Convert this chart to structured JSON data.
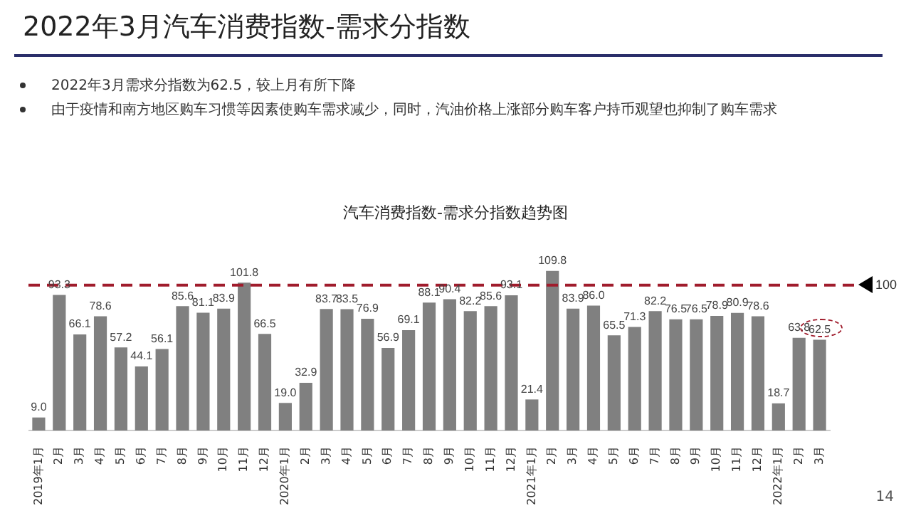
{
  "chart_data": {
    "type": "bar",
    "title": "2022年3月汽车消费指数-需求分指数",
    "subtitle": "汽车消费指数-需求分指数趋势图",
    "annotations": [
      "2022年3月需求分指数为62.5，较上月有所下降",
      "由于疫情和南方地区购车习惯等因素使购车需求减少，同时，汽油价格上涨部分购车客户持币观望也抑制了购车需求",
      "14"
    ],
    "categories": [
      "2019年1月",
      "2月",
      "3月",
      "4月",
      "5月",
      "6月",
      "7月",
      "8月",
      "9月",
      "10月",
      "11月",
      "12月",
      "2020年1月",
      "2月",
      "3月",
      "4月",
      "5月",
      "6月",
      "7月",
      "8月",
      "9月",
      "10月",
      "11月",
      "12月",
      "2021年1月",
      "2月",
      "3月",
      "4月",
      "5月",
      "6月",
      "7月",
      "8月",
      "9月",
      "10月",
      "11月",
      "12月",
      "2022年1月",
      "2月",
      "3月"
    ],
    "values": [
      9.0,
      93.3,
      66.1,
      78.6,
      57.2,
      44.1,
      56.1,
      85.6,
      81.1,
      83.9,
      101.8,
      66.5,
      19.0,
      32.9,
      83.7,
      83.5,
      76.9,
      56.9,
      69.1,
      88.1,
      90.4,
      82.2,
      85.6,
      93.1,
      21.4,
      109.8,
      83.9,
      86.0,
      65.5,
      71.3,
      82.2,
      76.5,
      76.5,
      78.9,
      80.9,
      78.6,
      18.7,
      63.8,
      62.5
    ],
    "color": "#808080",
    "value_labels": [
      "9.0",
      "93.3",
      "66.1",
      "78.6",
      "57.2",
      "44.1",
      "56.1",
      "85.6",
      "81.1",
      "83.9",
      "101.8",
      "66.5",
      "19.0",
      "32.9",
      "83.7",
      "83.5",
      "76.9",
      "56.9",
      "69.1",
      "88.1",
      "90.4",
      "82.2",
      "85.6",
      "93.1",
      "21.4",
      "109.8",
      "83.9",
      "86.0",
      "65.5",
      "71.3",
      "82.2",
      "76.5",
      "76.5",
      "78.9",
      "80.9",
      "78.6",
      "18.7",
      "63.8",
      "62.5"
    ],
    "ref_lines": [
      {
        "axis": "y",
        "value": 100,
        "label": "100",
        "color": "#a01c2c",
        "line_style": "dashed"
      }
    ],
    "grid": false,
    "legend": false
  }
}
